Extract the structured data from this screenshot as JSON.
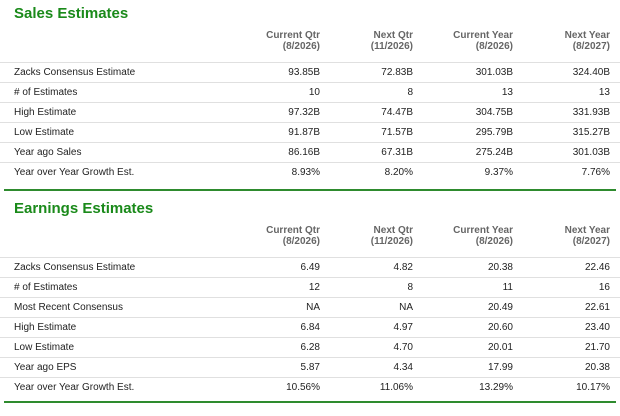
{
  "columns": [
    {
      "title": "Current Qtr",
      "sales_sub": "(8/2026)",
      "earn_sub": "(8/2026)"
    },
    {
      "title": "Next Qtr",
      "sales_sub": "(11/2026)",
      "earn_sub": "(11/2026)"
    },
    {
      "title": "Current Year",
      "sales_sub": "(8/2026)",
      "earn_sub": "(8/2026)"
    },
    {
      "title": "Next Year",
      "sales_sub": "(8/2027)",
      "earn_sub": "(8/2027)"
    }
  ],
  "sales": {
    "title": "Sales Estimates",
    "rows": [
      {
        "label": "Zacks Consensus Estimate",
        "values": [
          "93.85B",
          "72.83B",
          "301.03B",
          "324.40B"
        ]
      },
      {
        "label": "# of Estimates",
        "values": [
          "10",
          "8",
          "13",
          "13"
        ]
      },
      {
        "label": "High Estimate",
        "values": [
          "97.32B",
          "74.47B",
          "304.75B",
          "331.93B"
        ]
      },
      {
        "label": "Low Estimate",
        "values": [
          "91.87B",
          "71.57B",
          "295.79B",
          "315.27B"
        ]
      },
      {
        "label": "Year ago Sales",
        "values": [
          "86.16B",
          "67.31B",
          "275.24B",
          "301.03B"
        ]
      },
      {
        "label": "Year over Year Growth Est.",
        "values": [
          "8.93%",
          "8.20%",
          "9.37%",
          "7.76%"
        ]
      }
    ]
  },
  "earnings": {
    "title": "Earnings Estimates",
    "rows": [
      {
        "label": "Zacks Consensus Estimate",
        "values": [
          "6.49",
          "4.82",
          "20.38",
          "22.46"
        ]
      },
      {
        "label": "# of Estimates",
        "values": [
          "12",
          "8",
          "11",
          "16"
        ]
      },
      {
        "label": "Most Recent Consensus",
        "values": [
          "NA",
          "NA",
          "20.49",
          "22.61"
        ]
      },
      {
        "label": "High Estimate",
        "values": [
          "6.84",
          "4.97",
          "20.60",
          "23.40"
        ]
      },
      {
        "label": "Low Estimate",
        "values": [
          "6.28",
          "4.70",
          "20.01",
          "21.70"
        ]
      },
      {
        "label": "Year ago EPS",
        "values": [
          "5.87",
          "4.34",
          "17.99",
          "20.38"
        ]
      },
      {
        "label": "Year over Year Growth Est.",
        "values": [
          "10.56%",
          "11.06%",
          "13.29%",
          "10.17%"
        ]
      }
    ]
  }
}
